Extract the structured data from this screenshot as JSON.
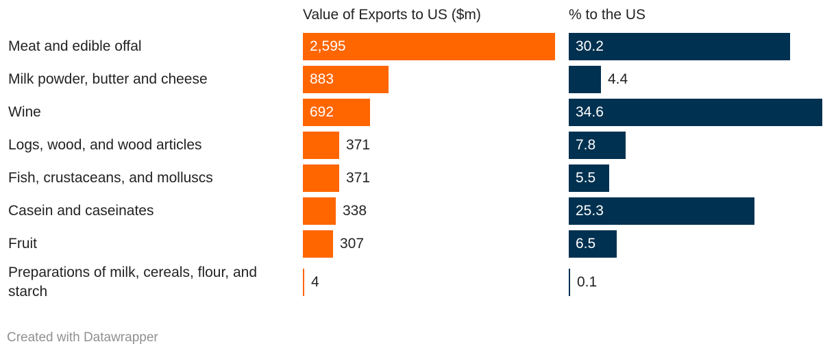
{
  "chart_data": {
    "type": "bar",
    "categories": [
      "Meat and edible offal",
      "Milk powder, butter and cheese",
      "Wine",
      "Logs, wood, and wood articles",
      "Fish, crustaceans, and molluscs",
      "Casein and caseinates",
      "Fruit",
      "Preparations of milk, cereals, flour, and starch"
    ],
    "series": [
      {
        "name": "Value of Exports to US ($m)",
        "values": [
          2595,
          883,
          692,
          371,
          371,
          338,
          307,
          4
        ],
        "labels": [
          "2,595",
          "883",
          "692",
          "371",
          "371",
          "338",
          "307",
          "4"
        ],
        "color": "#ff6600",
        "max": 2595
      },
      {
        "name": "% to the US",
        "values": [
          30.2,
          4.4,
          34.6,
          7.8,
          5.5,
          25.3,
          6.5,
          0.1
        ],
        "labels": [
          "30.2",
          "4.4",
          "34.6",
          "7.8",
          "5.5",
          "25.3",
          "6.5",
          "0.1"
        ],
        "color": "#003150",
        "max": 34.6
      }
    ]
  },
  "footer": "Created with Datawrapper"
}
